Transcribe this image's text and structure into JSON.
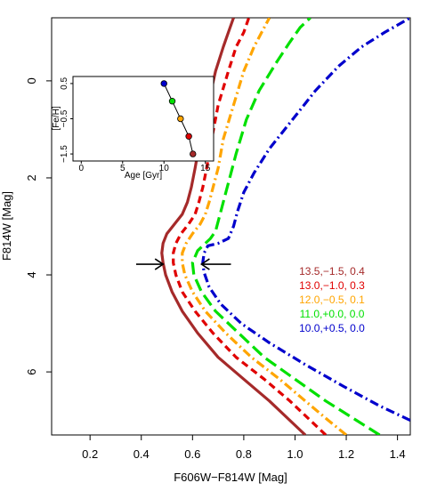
{
  "chart_data": {
    "type": "line",
    "xlabel": "F606W−F814W [Mag]",
    "ylabel": "F814W [Mag]",
    "xlim": [
      0.05,
      1.45
    ],
    "ylim": [
      7.3,
      -1.3
    ],
    "y_inverted": true,
    "xticks": [
      0.2,
      0.4,
      0.6,
      0.8,
      1.0,
      1.2,
      1.4
    ],
    "xtick_labels": [
      "0.2",
      "0.4",
      "0.6",
      "0.8",
      "1.0",
      "1.2",
      "1.4"
    ],
    "yticks": [
      0,
      2,
      4,
      6
    ],
    "ytick_labels": [
      "0",
      "2",
      "4",
      "6"
    ],
    "grid": false,
    "legend_placement": "right",
    "series": [
      {
        "name": "13.5,−1.5, 0.4",
        "color": "#a52a2a",
        "dash": "solid",
        "x": [
          1.04,
          0.98,
          0.9,
          0.8,
          0.7,
          0.62,
          0.56,
          0.52,
          0.495,
          0.485,
          0.48,
          0.485,
          0.5,
          0.53,
          0.56,
          0.58,
          0.595,
          0.61,
          0.63,
          0.66,
          0.69,
          0.72,
          0.74,
          0.76
        ],
        "y": [
          7.3,
          7.0,
          6.6,
          6.15,
          5.7,
          5.2,
          4.75,
          4.35,
          4.0,
          3.75,
          3.55,
          3.35,
          3.15,
          2.95,
          2.75,
          2.5,
          2.2,
          1.8,
          1.2,
          0.5,
          -0.2,
          -0.7,
          -1.0,
          -1.3
        ]
      },
      {
        "name": "13.0,−1.0, 0.3",
        "color": "#e00000",
        "dash": "8,5",
        "x": [
          1.12,
          1.06,
          0.98,
          0.88,
          0.77,
          0.68,
          0.61,
          0.56,
          0.535,
          0.525,
          0.525,
          0.535,
          0.555,
          0.585,
          0.61,
          0.625,
          0.64,
          0.655,
          0.675,
          0.7,
          0.74,
          0.77,
          0.8,
          0.82
        ],
        "y": [
          7.3,
          7.0,
          6.6,
          6.15,
          5.7,
          5.2,
          4.75,
          4.35,
          4.0,
          3.75,
          3.55,
          3.35,
          3.15,
          2.95,
          2.75,
          2.5,
          2.2,
          1.8,
          1.2,
          0.5,
          -0.2,
          -0.7,
          -1.0,
          -1.3
        ]
      },
      {
        "name": "12.0,−0.5, 0.1",
        "color": "#ffa500",
        "dash": "10,4,2,4",
        "x": [
          1.2,
          1.13,
          1.04,
          0.94,
          0.83,
          0.73,
          0.65,
          0.6,
          0.57,
          0.56,
          0.56,
          0.575,
          0.6,
          0.63,
          0.65,
          0.665,
          0.68,
          0.7,
          0.72,
          0.76,
          0.8,
          0.84,
          0.87,
          0.9
        ],
        "y": [
          7.3,
          7.0,
          6.6,
          6.15,
          5.7,
          5.2,
          4.75,
          4.35,
          4.0,
          3.75,
          3.55,
          3.35,
          3.15,
          2.95,
          2.75,
          2.5,
          2.2,
          1.8,
          1.2,
          0.5,
          -0.2,
          -0.7,
          -1.0,
          -1.3
        ]
      },
      {
        "name": "11.0,+0.0, 0.0",
        "color": "#00e000",
        "dash": "14,6",
        "x": [
          1.33,
          1.24,
          1.12,
          1.0,
          0.88,
          0.78,
          0.69,
          0.635,
          0.605,
          0.6,
          0.62,
          0.67,
          0.69,
          0.7,
          0.71,
          0.725,
          0.745,
          0.77,
          0.81,
          0.86,
          0.93,
          0.98,
          1.02,
          1.06
        ],
        "y": [
          7.3,
          7.0,
          6.6,
          6.15,
          5.7,
          5.2,
          4.75,
          4.35,
          4.0,
          3.75,
          3.5,
          3.25,
          3.1,
          2.9,
          2.7,
          2.4,
          2.0,
          1.5,
          0.8,
          0.2,
          -0.4,
          -0.8,
          -1.1,
          -1.3
        ]
      },
      {
        "name": "10.0,+0.5, 0.0",
        "color": "#0000cc",
        "dash": "10,4,2,4",
        "x": [
          1.45,
          1.33,
          1.19,
          1.04,
          0.9,
          0.79,
          0.71,
          0.665,
          0.645,
          0.64,
          0.645,
          0.66,
          0.7,
          0.74,
          0.76,
          0.775,
          0.8,
          0.84,
          0.9,
          0.99,
          1.08,
          1.17,
          1.26,
          1.35,
          1.45
        ],
        "y": [
          7.0,
          6.7,
          6.3,
          5.85,
          5.4,
          5.0,
          4.6,
          4.25,
          3.95,
          3.75,
          3.55,
          3.4,
          3.35,
          3.25,
          3.0,
          2.7,
          2.3,
          1.9,
          1.4,
          0.8,
          0.2,
          -0.3,
          -0.7,
          -1.0,
          -1.3
        ]
      }
    ],
    "annotations": [
      {
        "type": "arrow",
        "direction": "right",
        "color": "#000000",
        "x_from": 0.38,
        "x_to": 0.485,
        "y": 3.78
      },
      {
        "type": "arrow",
        "direction": "left",
        "color": "#000000",
        "x_from": 0.75,
        "x_to": 0.635,
        "y": 3.78
      }
    ],
    "inset": {
      "type": "line",
      "xlabel": "Age [Gyr]",
      "ylabel": "[Fe/H]",
      "xlim": [
        -1,
        16
      ],
      "ylim": [
        -1.7,
        0.7
      ],
      "xticks": [
        0,
        5,
        10,
        15
      ],
      "xtick_labels": [
        "0",
        "5",
        "10",
        "15"
      ],
      "yticks": [
        0.5,
        -0.5,
        -1.5
      ],
      "ytick_labels": [
        "0.5",
        "−0.5",
        "−1.5"
      ],
      "line_color": "#000000",
      "points": [
        {
          "x": 10.0,
          "y": 0.5,
          "color": "#0000cc"
        },
        {
          "x": 11.0,
          "y": 0.0,
          "color": "#00e000"
        },
        {
          "x": 12.0,
          "y": -0.5,
          "color": "#ffa500"
        },
        {
          "x": 13.0,
          "y": -1.0,
          "color": "#e00000"
        },
        {
          "x": 13.5,
          "y": -1.5,
          "color": "#a52a2a"
        }
      ]
    }
  }
}
